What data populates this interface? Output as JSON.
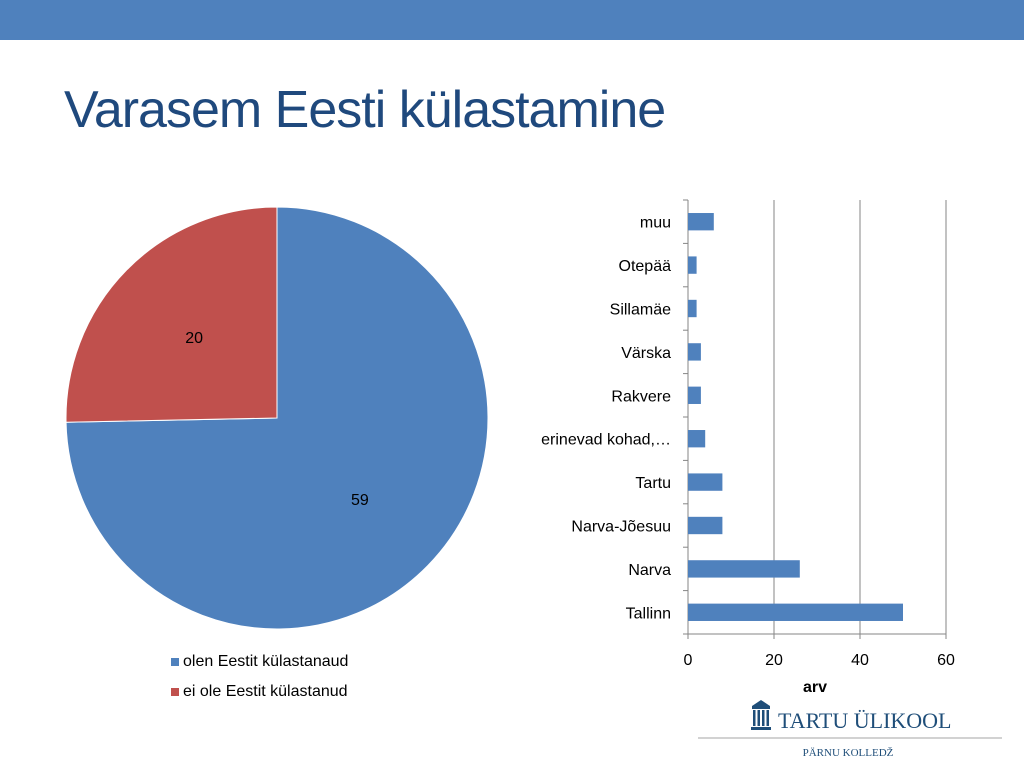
{
  "slide": {
    "title": "Varasem Eesti külastamine"
  },
  "colors": {
    "header_bar": "#4f81bd",
    "title": "#1f497d",
    "series_blue": "#4f81bd",
    "series_red": "#c0504d",
    "logo_text": "#1f4e79"
  },
  "chart_data": [
    {
      "type": "pie",
      "categories": [
        "olen Eestit külastanaud",
        "ei ole Eestit külastanud"
      ],
      "values": [
        59,
        20
      ],
      "data_labels": [
        "59",
        "20"
      ],
      "colors": [
        "#4f81bd",
        "#c0504d"
      ],
      "legend_position": "bottom"
    },
    {
      "type": "bar",
      "orientation": "horizontal",
      "categories": [
        "Tallinn",
        "Narva",
        "Narva-Jõesuu",
        "Tartu",
        "erinevad kohad,…",
        "Rakvere",
        "Värska",
        "Sillamäe",
        "Otepää",
        "muu"
      ],
      "values": [
        50,
        26,
        8,
        8,
        4,
        3,
        3,
        2,
        2,
        6
      ],
      "xlabel": "arv",
      "xlim": [
        0,
        60
      ],
      "xticks": [
        "0",
        "20",
        "40",
        "60"
      ],
      "grid": true,
      "color": "#4f81bd"
    }
  ],
  "logo": {
    "name": "TARTU ÜLIKOOL",
    "subtitle": "PÄRNU KOLLEDŽ"
  }
}
